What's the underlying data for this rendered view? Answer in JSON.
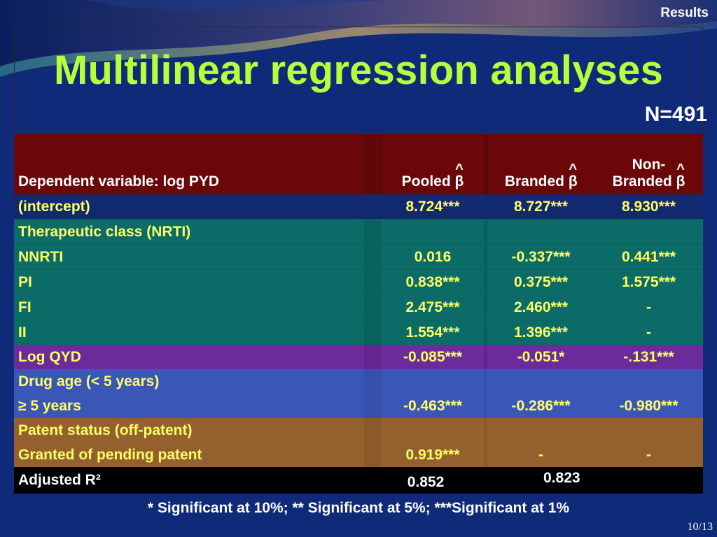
{
  "section_label": "Results",
  "title": "Multilinear regression analyses",
  "sample_size": "N=491",
  "table": {
    "header": {
      "dependent": "Dependent variable: log PYD",
      "pooled": "Pooled",
      "branded": "Branded",
      "nonbranded_line1": "Non-",
      "nonbranded_line2": "Branded",
      "beta": "β",
      "hat": "^"
    },
    "rows": [
      {
        "label": "(intercept)",
        "pooled": "8.724***",
        "branded": "8.727***",
        "nonbranded": "8.930***"
      },
      {
        "label": "Therapeutic class (NRTI)",
        "pooled": "",
        "branded": "",
        "nonbranded": ""
      },
      {
        "label": "NNRTI",
        "pooled": "0.016",
        "branded": "-0.337***",
        "nonbranded": "0.441***"
      },
      {
        "label": "PI",
        "pooled": "0.838***",
        "branded": "0.375***",
        "nonbranded": "1.575***"
      },
      {
        "label": "FI",
        "pooled": "2.475***",
        "branded": "2.460***",
        "nonbranded": "-"
      },
      {
        "label": "II",
        "pooled": "1.554***",
        "branded": "1.396***",
        "nonbranded": "-"
      },
      {
        "label": "Log QYD",
        "pooled": "-0.085***",
        "branded": "-0.051*",
        "nonbranded": "-.131***"
      },
      {
        "label": "Drug age  (< 5 years)",
        "pooled": "",
        "branded": "",
        "nonbranded": ""
      },
      {
        "label": "≥ 5 years",
        "pooled": "-0.463***",
        "branded": "-0.286***",
        "nonbranded": "-0.980***"
      },
      {
        "label": "Patent status (off-patent)",
        "pooled": "",
        "branded": "",
        "nonbranded": ""
      },
      {
        "label": "Granted of pending patent",
        "pooled": "0.919***",
        "branded": "-",
        "nonbranded": "-"
      }
    ],
    "adjusted_r2": {
      "label": "Adjusted R²",
      "pooled": "0.852",
      "branded": "0.823"
    }
  },
  "footnote": "* Significant at 10%;  ** Significant at 5%;  ***Significant at 1%",
  "page_number": "10/13",
  "colors": {
    "background": "#0f2a78",
    "title": "#b6ff3a",
    "header_row": "#6b0708",
    "intercept_row": "#10296f",
    "therapeutic_rows": "#0b6b66",
    "logqyd_row": "#6b2b9c",
    "drugage_rows": "#3a57b8",
    "patent_rows": "#94612e",
    "adjusted_row": "#000000",
    "cell_text": "#ffff66"
  }
}
